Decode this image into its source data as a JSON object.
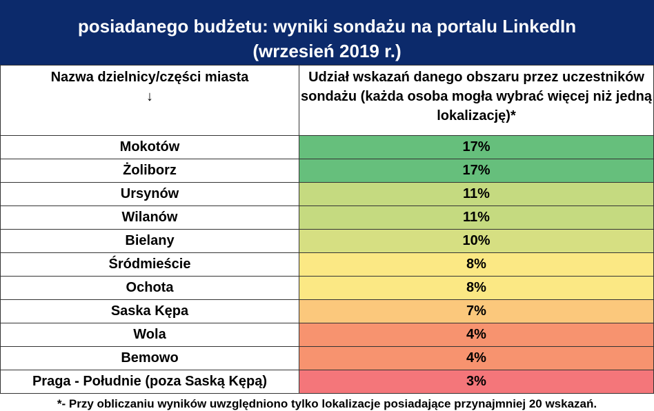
{
  "header": {
    "title_lines": [
      "posiadanego budżetu: wyniki sondażu na portalu LinkedIn",
      "(wrzesień 2019 r.)"
    ]
  },
  "table": {
    "columns": [
      "Nazwa dzielnicy/części miasta\n↓",
      "Udział wskazań danego obszaru przez uczestników sondażu (każda osoba mogła wybrać więcej niż jedną lokalizację)*"
    ],
    "rows": [
      [
        "Mokotów",
        "17%"
      ],
      [
        "Żoliborz",
        "17%"
      ],
      [
        "Ursynów",
        "11%"
      ],
      [
        "Wilanów",
        "11%"
      ],
      [
        "Bielany",
        "10%"
      ],
      [
        "Śródmieście",
        "8%"
      ],
      [
        "Ochota",
        "8%"
      ],
      [
        "Saska Kępa",
        "7%"
      ],
      [
        "Wola",
        "4%"
      ],
      [
        "Bemowo",
        "4%"
      ],
      [
        "Praga - Południe (poza Saską Kępą)",
        "3%"
      ]
    ],
    "row_colors": [
      "#66bf7c",
      "#66bf7c",
      "#c5da80",
      "#c5da80",
      "#d6df82",
      "#fbe884",
      "#fbe884",
      "#fbc87c",
      "#f7936f",
      "#f7936f",
      "#f4767a"
    ]
  },
  "footnote": "*- Przy obliczaniu wyników uwzględniono tylko lokalizacje posiadające przynajmniej 20 wskazań."
}
